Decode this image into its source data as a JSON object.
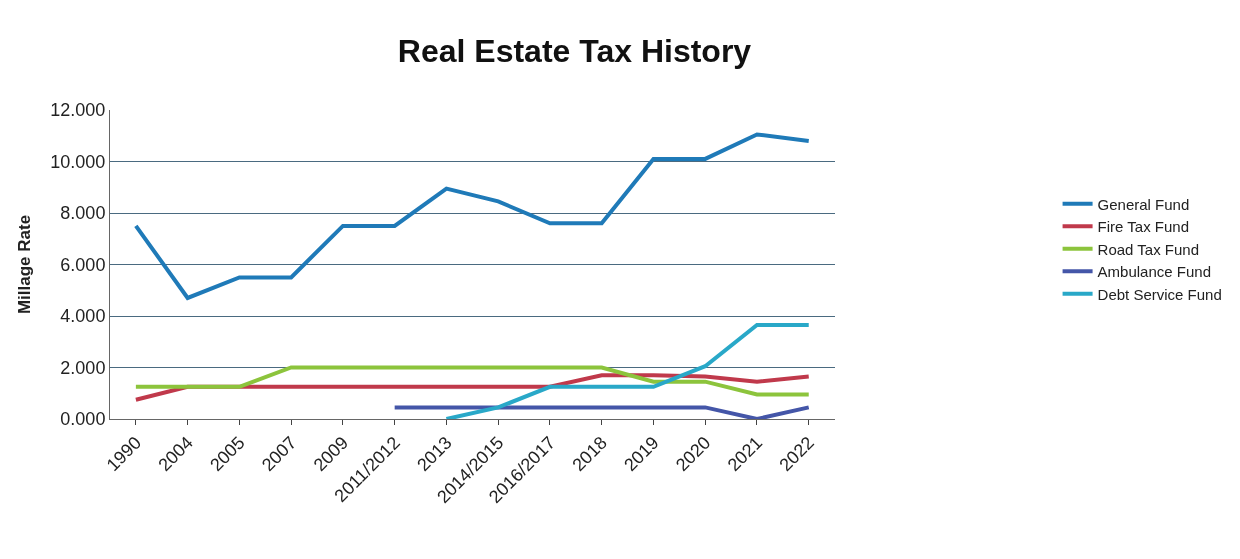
{
  "chart_data": {
    "type": "line",
    "title": "Real Estate Tax History",
    "ylabel": "Millage Rate",
    "categories": [
      "1990",
      "2004",
      "2005",
      "2007",
      "2009",
      "2011/2012",
      "2013",
      "2014/2015",
      "2016/2017",
      "2018",
      "2019",
      "2020",
      "2021",
      "2022"
    ],
    "series": [
      {
        "name": "General Fund",
        "color": "#1f7ab8",
        "values": [
          7.5,
          4.7,
          5.5,
          5.5,
          7.5,
          7.5,
          8.95,
          8.45,
          7.6,
          7.6,
          10.1,
          10.1,
          11.05,
          10.8
        ]
      },
      {
        "name": "Fire Tax Fund",
        "color": "#c0394b",
        "values": [
          0.75,
          1.25,
          1.25,
          1.25,
          1.25,
          1.25,
          1.25,
          1.25,
          1.25,
          1.7,
          1.7,
          1.65,
          1.45,
          1.65
        ]
      },
      {
        "name": "Road Tax Fund",
        "color": "#8cc43c",
        "values": [
          1.25,
          1.25,
          1.25,
          2.0,
          2.0,
          2.0,
          2.0,
          2.0,
          2.0,
          2.0,
          1.45,
          1.45,
          0.95,
          0.95
        ]
      },
      {
        "name": "Ambulance Fund",
        "color": "#4456a8",
        "values": [
          null,
          null,
          null,
          null,
          null,
          0.45,
          0.45,
          0.45,
          0.45,
          0.45,
          0.45,
          0.45,
          0.0,
          0.45
        ]
      },
      {
        "name": "Debt Service Fund",
        "color": "#29a8c8",
        "values": [
          null,
          null,
          null,
          null,
          null,
          null,
          0.0,
          0.45,
          1.25,
          1.25,
          1.25,
          2.05,
          3.65,
          3.65
        ]
      }
    ],
    "ylim": [
      0,
      12
    ],
    "yticks": [
      {
        "value": 0,
        "label": "0.000"
      },
      {
        "value": 2,
        "label": "2.000"
      },
      {
        "value": 4,
        "label": "4.000"
      },
      {
        "value": 6,
        "label": "6.000"
      },
      {
        "value": 8,
        "label": "8.000"
      },
      {
        "value": 10,
        "label": "10.000"
      },
      {
        "value": 12,
        "label": "12.000"
      }
    ],
    "grid": "y",
    "legend": "right",
    "marker": "none",
    "line_style": "solid"
  }
}
